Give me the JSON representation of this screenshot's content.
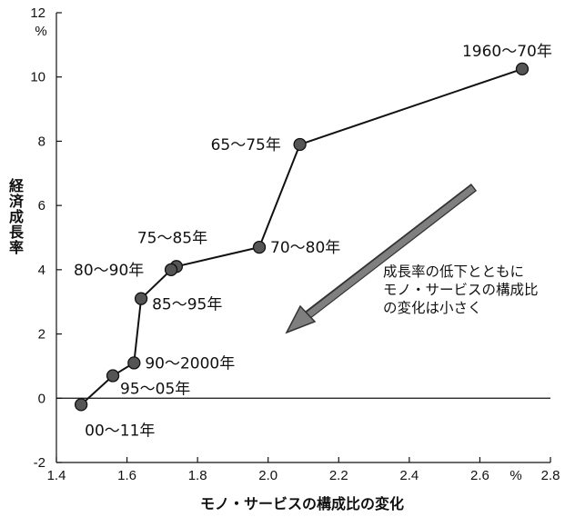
{
  "chart_data": {
    "type": "line",
    "title": "",
    "xlabel": "モノ・サービスの構成比の変化",
    "ylabel": "経済成長率",
    "x_unit": "%",
    "y_unit": "%",
    "xlim": [
      1.4,
      2.8
    ],
    "ylim": [
      -2,
      12
    ],
    "x_ticks": [
      "1.4",
      "1.6",
      "1.8",
      "2.0",
      "2.2",
      "2.4",
      "2.6",
      "2.8"
    ],
    "y_ticks": [
      "-2",
      "0",
      "2",
      "4",
      "6",
      "8",
      "10",
      "12"
    ],
    "zero_line": true,
    "grid": false,
    "points": [
      {
        "label": "1960〜70年",
        "x": 2.72,
        "y": 10.25
      },
      {
        "label": "65〜75年",
        "x": 2.09,
        "y": 7.9
      },
      {
        "label": "70〜80年",
        "x": 1.975,
        "y": 4.7
      },
      {
        "label": "75〜85年",
        "x": 1.74,
        "y": 4.1
      },
      {
        "label": "80〜90年",
        "x": 1.725,
        "y": 4.0
      },
      {
        "label": "85〜95年",
        "x": 1.64,
        "y": 3.1
      },
      {
        "label": "90〜2000年",
        "x": 1.62,
        "y": 1.1
      },
      {
        "label": "95〜05年",
        "x": 1.56,
        "y": 0.7
      },
      {
        "label": "00〜11年",
        "x": 1.47,
        "y": -0.2
      }
    ],
    "annotation": {
      "lines": [
        "成長率の低下とともに",
        "モノ・サービスの構成比",
        "の変化は小さく"
      ],
      "arrow_color": "#7f7f7f"
    },
    "colors": {
      "line": "#111111",
      "marker": "#555555"
    }
  }
}
